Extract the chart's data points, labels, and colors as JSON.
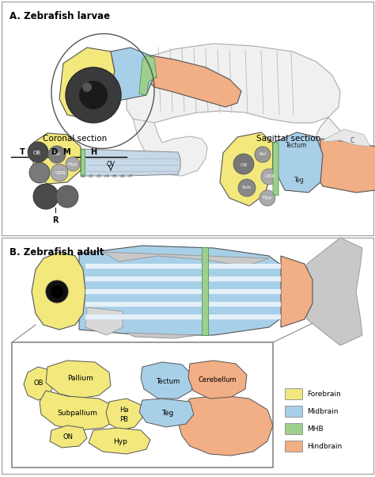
{
  "title_A": "A. Zebrafish larvae",
  "title_B": "B. Zebrafish adult",
  "section_coronal": "Coronal section",
  "section_sagittal": "Sagittal section",
  "color_forebrain": "#f2e87c",
  "color_midbrain": "#a8cfe8",
  "color_MHB": "#9ecf8e",
  "color_hindbrain": "#f2ae85",
  "color_dark_gray": "#4a4a4a",
  "color_mid_gray": "#7a7a7a",
  "color_light_gray": "#c8c8c8",
  "color_outline": "#555555",
  "color_bg": "#ffffff",
  "legend_labels": [
    "Forebrain",
    "Midbrain",
    "MHB",
    "Hindbrain"
  ],
  "legend_colors": [
    "#f2e87c",
    "#a8cfe8",
    "#9ecf8e",
    "#f2ae85"
  ]
}
